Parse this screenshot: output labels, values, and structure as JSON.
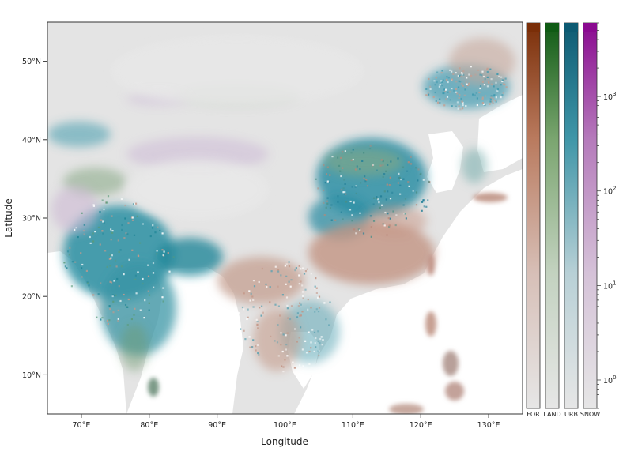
{
  "chart_data": {
    "type": "heatmap",
    "xlabel": "Longitude",
    "ylabel": "Latitude",
    "xlim": [
      65,
      135
    ],
    "ylim": [
      5,
      55
    ],
    "x_ticks": [
      {
        "value": 70,
        "label": "70°E"
      },
      {
        "value": 80,
        "label": "80°E"
      },
      {
        "value": 90,
        "label": "90°E"
      },
      {
        "value": 100,
        "label": "100°E"
      },
      {
        "value": 110,
        "label": "110°E"
      },
      {
        "value": 120,
        "label": "120°E"
      },
      {
        "value": 130,
        "label": "130°E"
      }
    ],
    "y_ticks": [
      {
        "value": 10,
        "label": "10°N"
      },
      {
        "value": 20,
        "label": "20°N"
      },
      {
        "value": 30,
        "label": "30°N"
      },
      {
        "value": 40,
        "label": "40°N"
      },
      {
        "value": 50,
        "label": "50°N"
      }
    ],
    "colorbars": [
      {
        "label": "FOR",
        "color": "#7a2e08"
      },
      {
        "label": "LAND",
        "color": "#0f5a14"
      },
      {
        "label": "URB",
        "color": "#0c5a72"
      },
      {
        "label": "SNOW",
        "color": "#8a0a90"
      }
    ],
    "colorbar_scale": "log",
    "colorbar_range": [
      0.5,
      6000
    ],
    "colorbar_ticks": [
      {
        "value": 1,
        "base": "10",
        "exp": "0"
      },
      {
        "value": 10,
        "base": "10",
        "exp": "1"
      },
      {
        "value": 100,
        "base": "10",
        "exp": "2"
      },
      {
        "value": 1000,
        "base": "10",
        "exp": "3"
      }
    ],
    "colors": {
      "background": "#e4e4e4",
      "ocean": "#ffffff"
    }
  }
}
